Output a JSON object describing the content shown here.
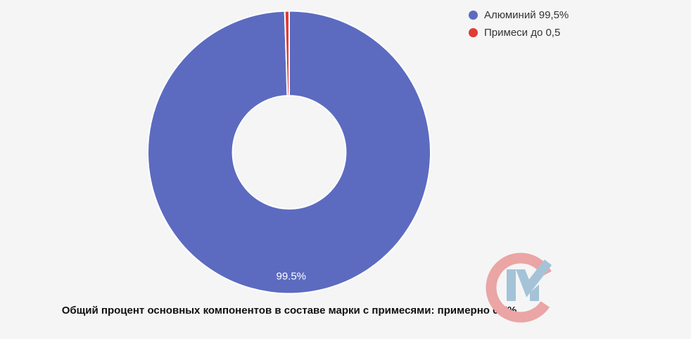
{
  "page": {
    "background": "#f5f5f6"
  },
  "chart_data": {
    "type": "pie",
    "variant": "donut",
    "title": "",
    "caption": "Общий процент основных компонентов в составе марки с примесями: примерно 0,5%",
    "legend_position": "top-right",
    "start_angle_deg": 0,
    "direction": "clockwise",
    "cutout_ratio": 0.4,
    "border_color": "#ffffff",
    "datalabel_color": "#ffffff",
    "segments": [
      {
        "label": "Алюминий 99,5%",
        "value": 99.5,
        "color": "#5c6bc0",
        "datalabel": "99.5%"
      },
      {
        "label": "Примеси до 0,5",
        "value": 0.5,
        "color": "#e03c34",
        "datalabel": ""
      }
    ]
  },
  "watermark": {
    "icon": "cm-checkmark-monogram",
    "c_color": "#eaa5a4",
    "m_color": "#a4c3d7"
  }
}
